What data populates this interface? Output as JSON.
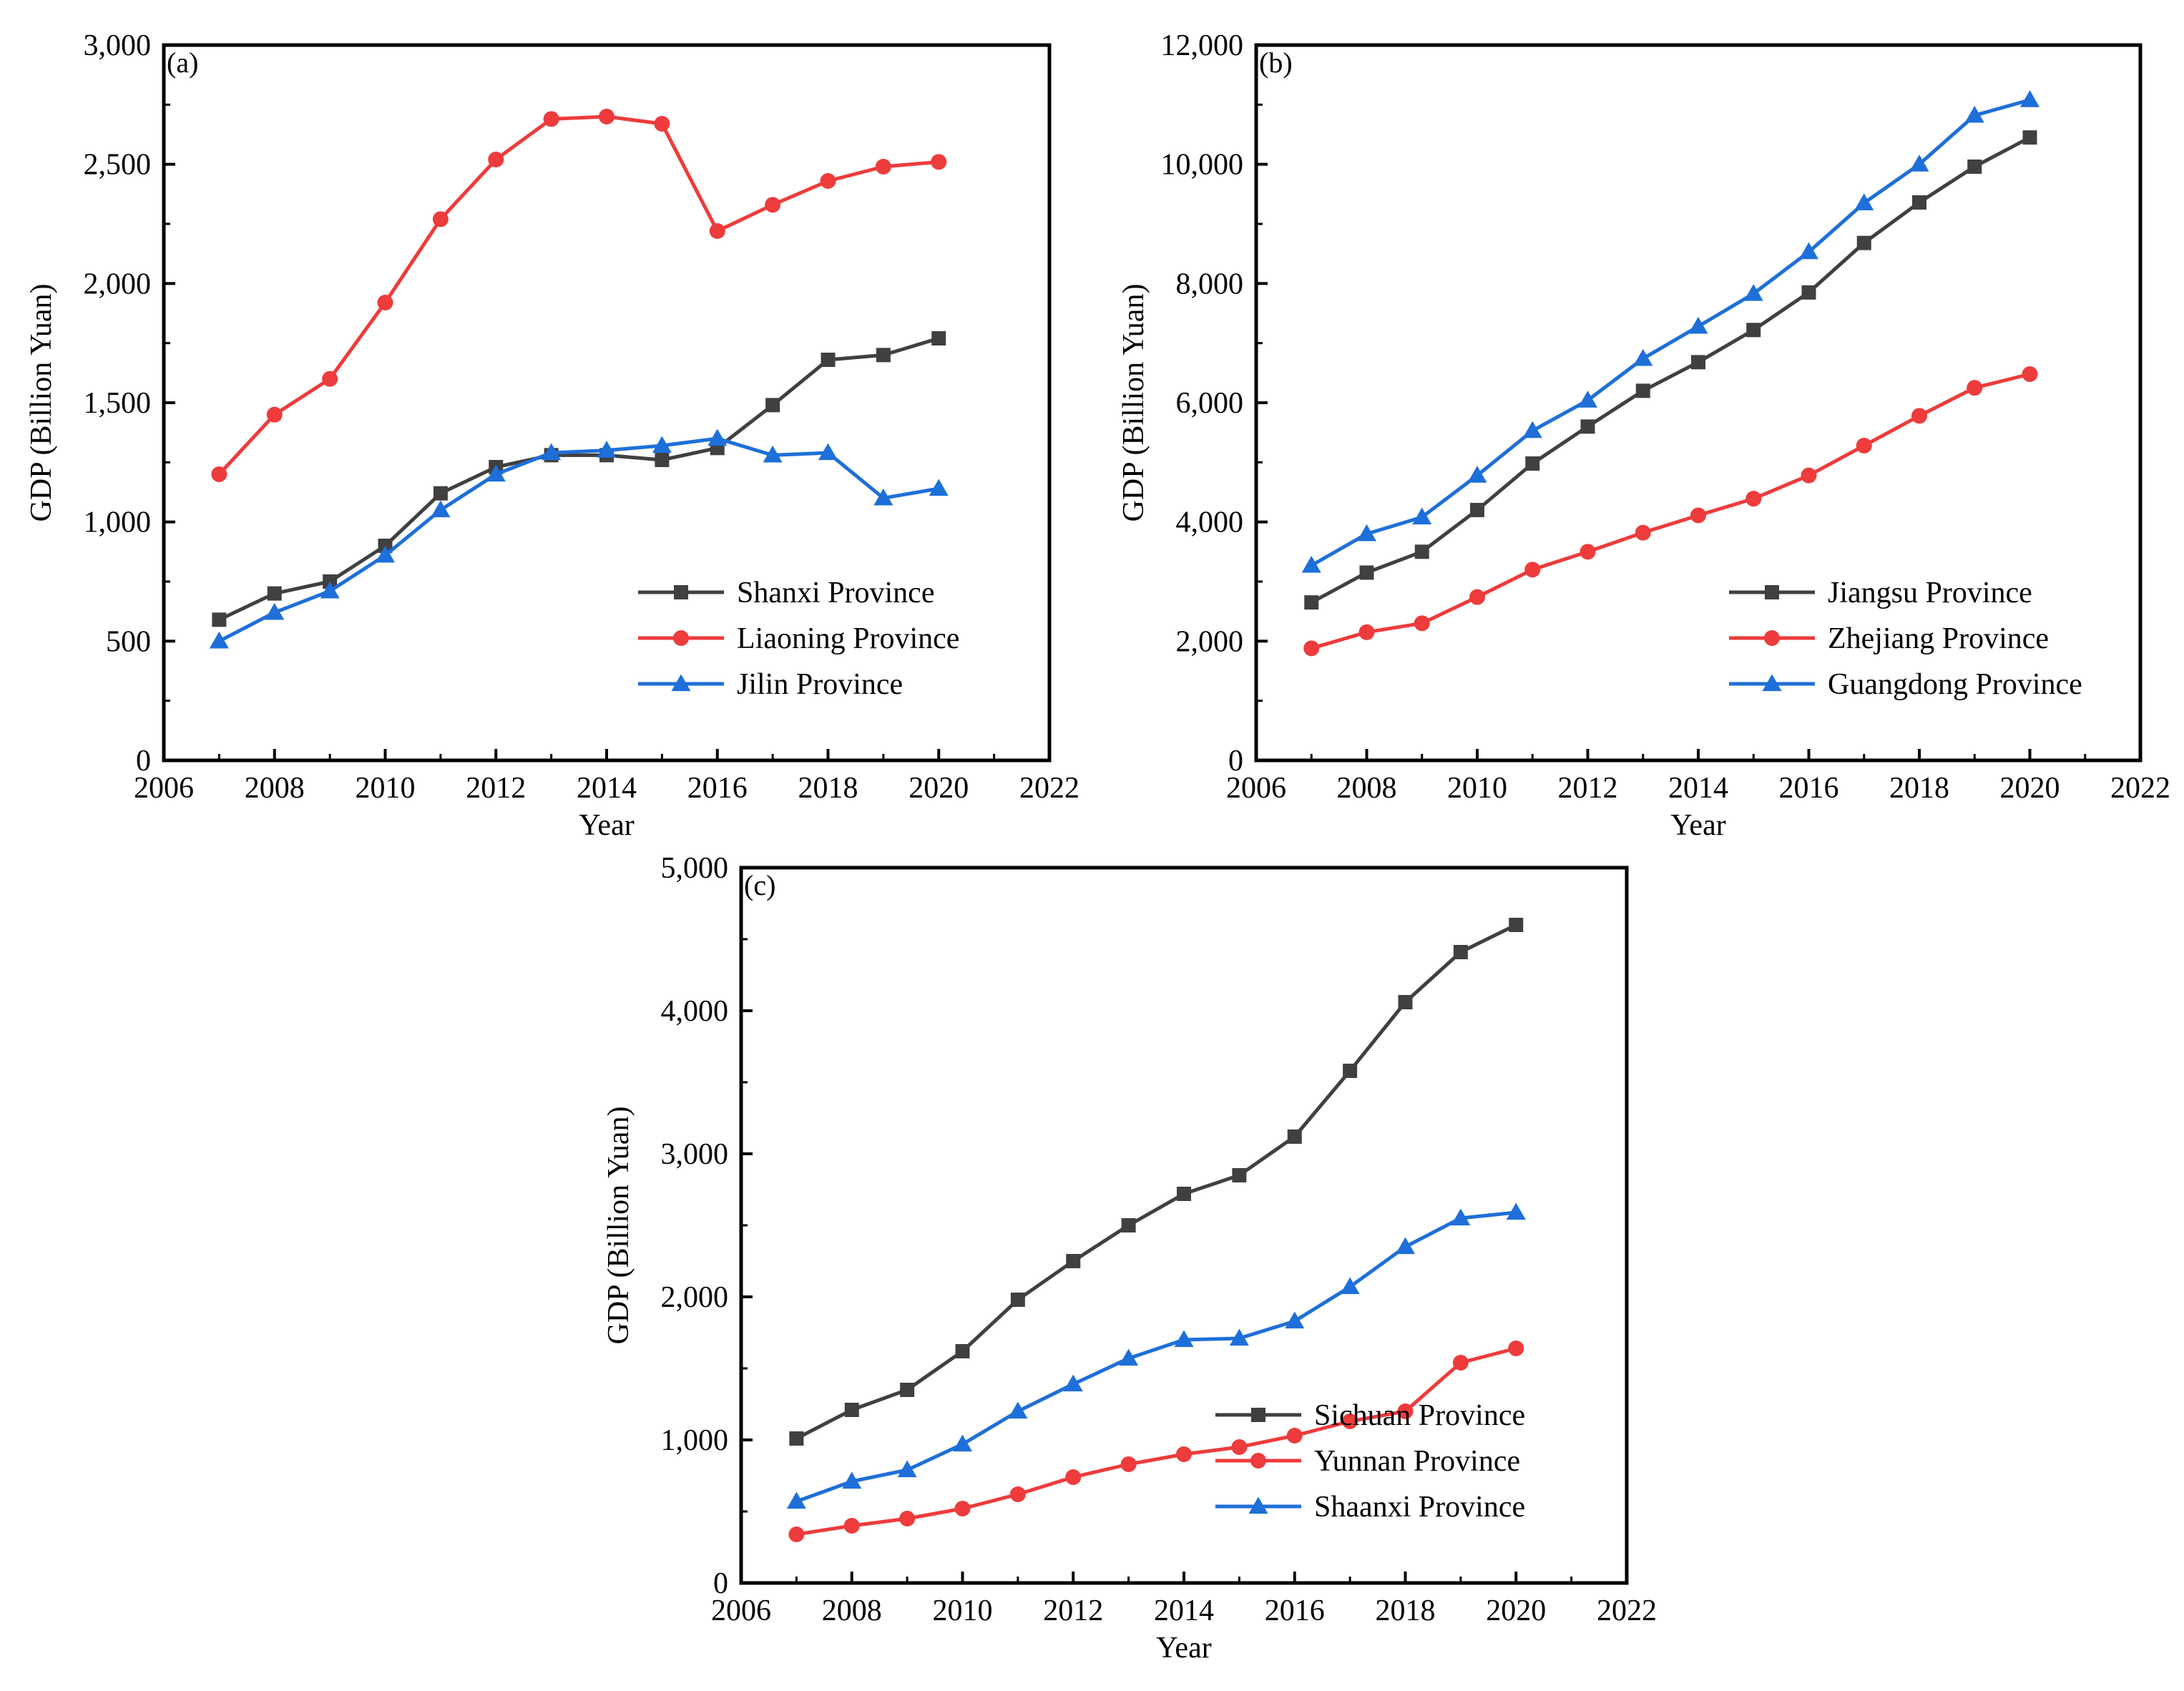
{
  "chart_data": [
    {
      "panel": "(a)",
      "type": "line",
      "xlabel": "Year",
      "ylabel": "GDP (Billion Yuan)",
      "xlim": [
        2006,
        2022
      ],
      "ylim": [
        0,
        3000
      ],
      "x_ticks": [
        2006,
        2008,
        2010,
        2012,
        2014,
        2016,
        2018,
        2020,
        2022
      ],
      "y_ticks": [
        0,
        500,
        1000,
        1500,
        2000,
        2500,
        3000
      ],
      "x_tick_labels": [
        "2006",
        "2008",
        "2010",
        "2012",
        "2014",
        "2016",
        "2018",
        "2020",
        "2022"
      ],
      "y_tick_labels": [
        "0",
        "500",
        "1,000",
        "1,500",
        "2,000",
        "2,500",
        "3,000"
      ],
      "legend_position": "lower-right",
      "x": [
        2007,
        2008,
        2009,
        2010,
        2011,
        2012,
        2013,
        2014,
        2015,
        2016,
        2017,
        2018,
        2019,
        2020
      ],
      "series": [
        {
          "name": "Shanxi Province",
          "color": "#404040",
          "marker": "square",
          "values": [
            590,
            700,
            750,
            900,
            1120,
            1230,
            1280,
            1280,
            1260,
            1310,
            1490,
            1680,
            1700,
            1770
          ]
        },
        {
          "name": "Liaoning Province",
          "color": "#ee3b3b",
          "marker": "circle",
          "values": [
            1200,
            1450,
            1600,
            1920,
            2270,
            2520,
            2690,
            2700,
            2670,
            2220,
            2330,
            2430,
            2490,
            2510
          ]
        },
        {
          "name": "Jilin Province",
          "color": "#1e6fd9",
          "marker": "triangle",
          "values": [
            500,
            620,
            710,
            860,
            1050,
            1200,
            1290,
            1300,
            1320,
            1350,
            1280,
            1290,
            1100,
            1140
          ]
        }
      ]
    },
    {
      "panel": "(b)",
      "type": "line",
      "xlabel": "Year",
      "ylabel": "GDP (Billion Yuan)",
      "xlim": [
        2006,
        2022
      ],
      "ylim": [
        0,
        12000
      ],
      "x_ticks": [
        2006,
        2008,
        2010,
        2012,
        2014,
        2016,
        2018,
        2020,
        2022
      ],
      "y_ticks": [
        0,
        2000,
        4000,
        6000,
        8000,
        10000,
        12000
      ],
      "x_tick_labels": [
        "2006",
        "2008",
        "2010",
        "2012",
        "2014",
        "2016",
        "2018",
        "2020",
        "2022"
      ],
      "y_tick_labels": [
        "0",
        "2,000",
        "4,000",
        "6,000",
        "8,000",
        "10,000",
        "12,000"
      ],
      "legend_position": "lower-right",
      "x": [
        2007,
        2008,
        2009,
        2010,
        2011,
        2012,
        2013,
        2014,
        2015,
        2016,
        2017,
        2018,
        2019,
        2020
      ],
      "series": [
        {
          "name": "Jiangsu Province",
          "color": "#404040",
          "marker": "square",
          "values": [
            2650,
            3150,
            3500,
            4200,
            4980,
            5600,
            6200,
            6680,
            7220,
            7850,
            8680,
            9360,
            9960,
            10450
          ]
        },
        {
          "name": "Zhejiang Province",
          "color": "#ee3b3b",
          "marker": "circle",
          "values": [
            1880,
            2150,
            2300,
            2740,
            3200,
            3500,
            3820,
            4110,
            4390,
            4780,
            5280,
            5780,
            6250,
            6480
          ]
        },
        {
          "name": "Guangdong Province",
          "color": "#1e6fd9",
          "marker": "triangle",
          "values": [
            3270,
            3800,
            4080,
            4780,
            5530,
            6040,
            6740,
            7280,
            7830,
            8530,
            9350,
            10000,
            10820,
            11080
          ]
        }
      ]
    },
    {
      "panel": "(c)",
      "type": "line",
      "xlabel": "Year",
      "ylabel": "GDP (Billion Yuan)",
      "xlim": [
        2006,
        2022
      ],
      "ylim": [
        0,
        5000
      ],
      "x_ticks": [
        2006,
        2008,
        2010,
        2012,
        2014,
        2016,
        2018,
        2020,
        2022
      ],
      "y_ticks": [
        0,
        1000,
        2000,
        3000,
        4000,
        5000
      ],
      "x_tick_labels": [
        "2006",
        "2008",
        "2010",
        "2012",
        "2014",
        "2016",
        "2018",
        "2020",
        "2022"
      ],
      "y_tick_labels": [
        "0",
        "1,000",
        "2,000",
        "3,000",
        "4,000",
        "5,000"
      ],
      "legend_position": "lower-right",
      "x": [
        2007,
        2008,
        2009,
        2010,
        2011,
        2012,
        2013,
        2014,
        2015,
        2016,
        2017,
        2018,
        2019,
        2020
      ],
      "series": [
        {
          "name": "Sichuan Province",
          "color": "#404040",
          "marker": "square",
          "values": [
            1010,
            1210,
            1350,
            1620,
            1980,
            2250,
            2500,
            2720,
            2850,
            3120,
            3580,
            4060,
            4410,
            4600
          ]
        },
        {
          "name": "Yunnan Province",
          "color": "#ee3b3b",
          "marker": "circle",
          "values": [
            340,
            400,
            450,
            520,
            620,
            740,
            830,
            900,
            950,
            1030,
            1130,
            1200,
            1540,
            1640
          ]
        },
        {
          "name": "Shaanxi Province",
          "color": "#1e6fd9",
          "marker": "triangle",
          "values": [
            570,
            710,
            790,
            970,
            1200,
            1390,
            1570,
            1700,
            1710,
            1830,
            2070,
            2350,
            2550,
            2590
          ]
        }
      ]
    }
  ]
}
